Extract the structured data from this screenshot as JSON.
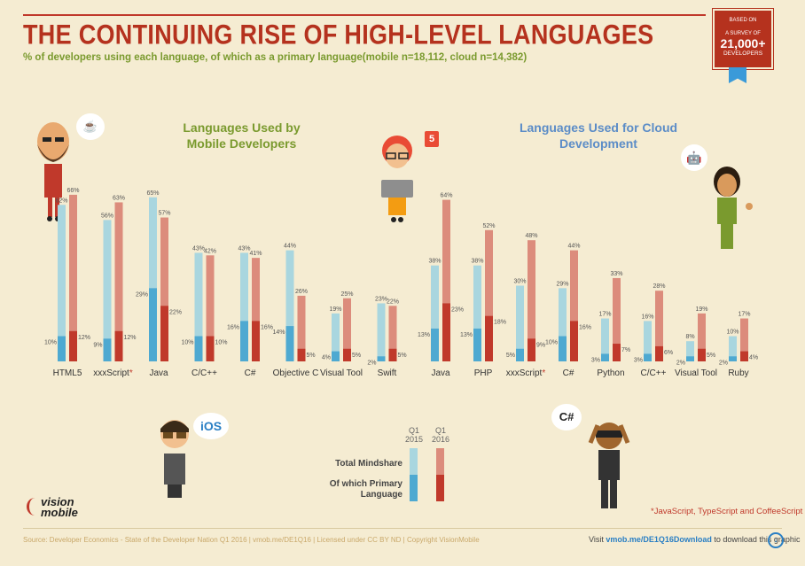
{
  "header": {
    "title": "THE CONTINUING RISE OF HIGH-LEVEL LANGUAGES",
    "subtitle": "% of developers using each language, of which as a primary language(mobile n=18,112, cloud n=14,382)"
  },
  "badge": {
    "line1": "BASED ON",
    "line1b": "A SURVEY OF",
    "count": "21,000+",
    "line3": "DEVELOPERS"
  },
  "colors": {
    "q1_2015_total": "#a9d6df",
    "q1_2015_primary": "#4ea9d1",
    "q1_2016_total": "#dc8c7c",
    "q1_2016_primary": "#c0392b",
    "title": "#b5321e",
    "accent_green": "#7a9a2e",
    "accent_blue": "#5b8cc7"
  },
  "icons": [
    "java-logo-icon",
    "html5-logo-icon",
    "android-logo-icon",
    "ios-logo-icon",
    "csharp-logo-icon",
    "download-icon"
  ],
  "chart_data": [
    {
      "type": "bar",
      "title": "Languages Used by Mobile Developers",
      "categories": [
        "HTML5",
        "xxxScript",
        "Java",
        "C/C++",
        "C#",
        "Objective C",
        "Visual Tool",
        "Swift"
      ],
      "category_marks": [
        "",
        "*",
        "",
        "",
        "",
        "",
        "",
        ""
      ],
      "series": [
        {
          "name": "Total Mindshare Q1 2015",
          "values": [
            62,
            56,
            65,
            43,
            43,
            44,
            19,
            23
          ]
        },
        {
          "name": "Of which Primary Language Q1 2015",
          "values": [
            10,
            9,
            29,
            10,
            16,
            14,
            4,
            2
          ]
        },
        {
          "name": "Total Mindshare Q1 2016",
          "values": [
            66,
            63,
            57,
            42,
            41,
            26,
            25,
            22
          ]
        },
        {
          "name": "Of which Primary Language Q1 2016",
          "values": [
            12,
            12,
            22,
            10,
            16,
            5,
            5,
            5
          ]
        }
      ],
      "ylim": [
        0,
        70
      ]
    },
    {
      "type": "bar",
      "title": "Languages Used for Cloud Development",
      "categories": [
        "Java",
        "PHP",
        "xxxScript",
        "C#",
        "Python",
        "C/C++",
        "Visual Tool",
        "Ruby"
      ],
      "category_marks": [
        "",
        "",
        "*",
        "",
        "",
        "",
        "",
        ""
      ],
      "series": [
        {
          "name": "Total Mindshare Q1 2015",
          "values": [
            38,
            38,
            30,
            29,
            17,
            16,
            8,
            10
          ]
        },
        {
          "name": "Of which Primary Language Q1 2015",
          "values": [
            13,
            13,
            5,
            10,
            3,
            3,
            2,
            2
          ]
        },
        {
          "name": "Total Mindshare Q1 2016",
          "values": [
            64,
            52,
            48,
            44,
            33,
            28,
            19,
            17
          ]
        },
        {
          "name": "Of which Primary Language Q1 2016",
          "values": [
            23,
            18,
            9,
            16,
            7,
            6,
            5,
            4
          ]
        }
      ],
      "ylim": [
        0,
        70
      ]
    }
  ],
  "legend": {
    "year_2015": "Q1 2015",
    "year_2016": "Q1 2016",
    "total_label": "Total Mindshare",
    "primary_label": "Of which Primary Language"
  },
  "bubbles": {
    "ios": "iOS",
    "csharp": "C#"
  },
  "footnote": "*JavaScript, TypeScript and CoffeeScript",
  "footer": {
    "source": "Source: Developer Economics - State of the Developer Nation Q1 2016 | vmob.me/DE1Q16 | Licensed under CC BY ND | Copyright VisionMobile",
    "visit_prefix": "Visit ",
    "visit_link": "vmob.me/DE1Q16Download",
    "visit_suffix": " to download this graphic"
  },
  "logo": {
    "line1": "vision",
    "line2": "mobile"
  }
}
